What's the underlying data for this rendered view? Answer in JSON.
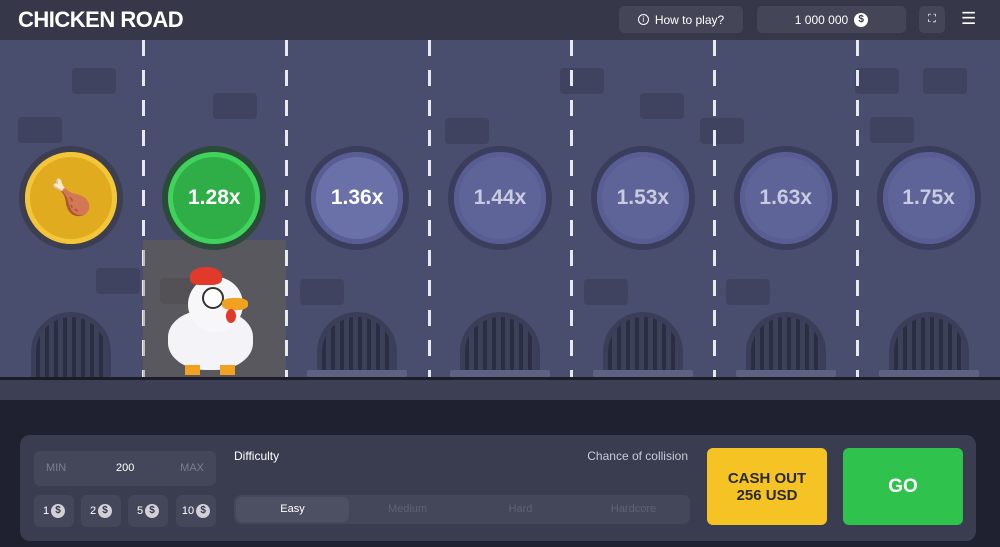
{
  "header": {
    "logo": "CHICKEN ROAD",
    "how_to_play": "How to play?",
    "balance": "1 000 000",
    "currency_symbol": "$"
  },
  "lanes": [
    {
      "type": "gold",
      "label": ""
    },
    {
      "type": "green",
      "label": "1.28x"
    },
    {
      "type": "blue",
      "label": "1.36x"
    },
    {
      "type": "dim",
      "label": "1.44x"
    },
    {
      "type": "dim",
      "label": "1.53x"
    },
    {
      "type": "dim",
      "label": "1.63x"
    },
    {
      "type": "dim",
      "label": "1.75x"
    }
  ],
  "controls": {
    "min_label": "MIN",
    "bet_value": "200",
    "max_label": "MAX",
    "quick_bets": [
      "1",
      "2",
      "5",
      "10"
    ],
    "difficulty_label": "Difficulty",
    "collision_label": "Chance of collision",
    "difficulties": [
      "Easy",
      "Medium",
      "Hard",
      "Hardcore"
    ],
    "selected_difficulty": "Easy",
    "cash_out_line1": "CASH OUT",
    "cash_out_line2": "256 USD",
    "go_label": "GO"
  },
  "colors": {
    "cash_out": "#f6c324",
    "go": "#2fc24d",
    "active_coin": "#2fae47"
  }
}
